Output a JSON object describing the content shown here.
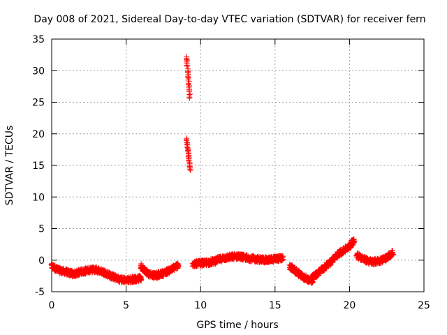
{
  "chart_data": {
    "type": "scatter",
    "title": "Day 008 of 2021, Sidereal Day-to-day VTEC variation (SDTVAR) for receiver fern",
    "xlabel": "GPS time / hours",
    "ylabel": "SDTVAR / TECUs",
    "xlim": [
      0,
      25
    ],
    "ylim": [
      -5,
      35
    ],
    "xticks": [
      0,
      5,
      10,
      15,
      20,
      25
    ],
    "yticks": [
      -5,
      0,
      5,
      10,
      15,
      20,
      25,
      30,
      35
    ],
    "grid": true,
    "marker": "+",
    "series": [
      {
        "name": "SDTVAR",
        "color": "#ff0000",
        "segments": [
          {
            "x": [
              0.0,
              0.5,
              1.0,
              1.5,
              2.0,
              2.5,
              3.0,
              3.5,
              4.0,
              4.5,
              5.0,
              5.5,
              6.0
            ],
            "y": [
              -1.0,
              -1.6,
              -1.9,
              -2.2,
              -1.8,
              -1.6,
              -1.5,
              -1.9,
              -2.5,
              -3.0,
              -3.2,
              -3.0,
              -2.9
            ]
          },
          {
            "x": [
              6.0,
              6.5,
              7.0,
              7.5,
              8.0,
              8.5
            ],
            "y": [
              -1.0,
              -2.2,
              -2.4,
              -2.1,
              -1.5,
              -0.8
            ]
          },
          {
            "x": [
              9.05,
              9.1,
              9.15,
              9.2,
              9.25,
              9.28
            ],
            "y": [
              32.2,
              31.0,
              29.6,
              28.3,
              27.0,
              25.6
            ]
          },
          {
            "x": [
              9.05,
              9.1,
              9.15,
              9.2,
              9.25,
              9.3
            ],
            "y": [
              19.3,
              18.2,
              17.3,
              16.4,
              15.4,
              14.3
            ]
          },
          {
            "x": [
              9.5,
              10.0,
              10.5,
              11.0,
              11.5,
              12.0,
              12.5,
              13.0,
              13.5,
              14.0,
              14.5,
              15.0,
              15.5
            ],
            "y": [
              -0.6,
              -0.5,
              -0.4,
              -0.1,
              0.3,
              0.5,
              0.6,
              0.4,
              0.2,
              0.1,
              0.0,
              0.2,
              0.3
            ]
          },
          {
            "x": [
              16.0,
              16.5,
              17.0,
              17.5
            ],
            "y": [
              -1.0,
              -2.0,
              -2.8,
              -3.4
            ]
          },
          {
            "x": [
              17.5,
              18.0,
              18.5,
              19.0,
              19.5,
              20.0,
              20.3
            ],
            "y": [
              -2.8,
              -1.8,
              -0.8,
              0.4,
              1.4,
              2.2,
              3.2
            ]
          },
          {
            "x": [
              20.5,
              21.0,
              21.5,
              22.0,
              22.5,
              22.9
            ],
            "y": [
              0.8,
              0.1,
              -0.3,
              -0.1,
              0.3,
              1.2
            ]
          }
        ]
      }
    ]
  }
}
